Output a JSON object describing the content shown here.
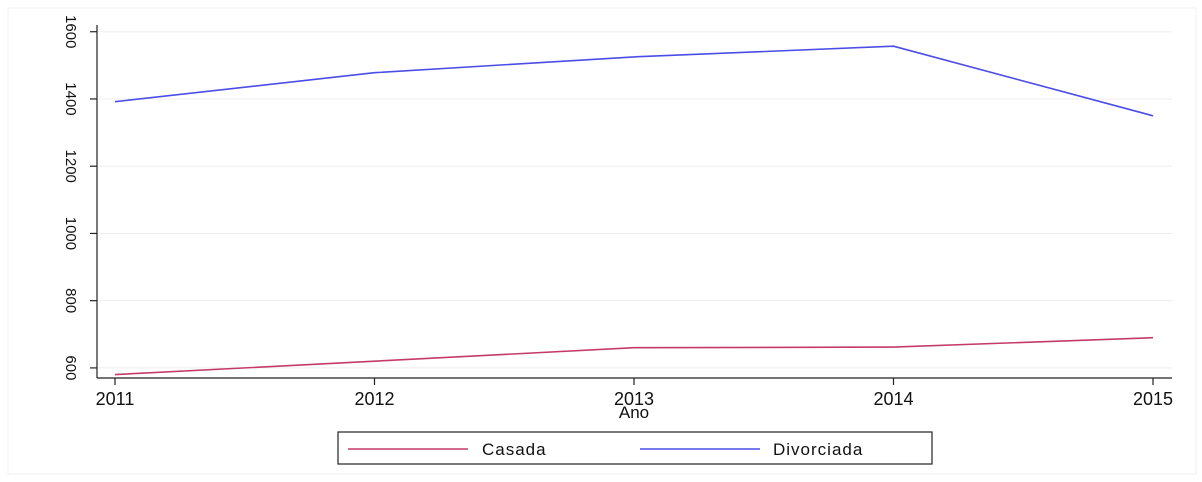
{
  "chart_data": {
    "type": "line",
    "title": "",
    "xlabel": "Ano",
    "ylabel": "",
    "x": [
      2011,
      2012,
      2013,
      2014,
      2015
    ],
    "x_ticks": [
      "2011",
      "2012",
      "2013",
      "2014",
      "2015"
    ],
    "y_ticks": [
      "600",
      "800",
      "1000",
      "1200",
      "1400",
      "1600"
    ],
    "ylim": [
      570,
      1620
    ],
    "grid": true,
    "legend_position": "bottom",
    "series": [
      {
        "name": "Casada",
        "color": "#c43b6b",
        "values": [
          580,
          620,
          660,
          662,
          690
        ]
      },
      {
        "name": "Divorciada",
        "color": "#4b4de6",
        "values": [
          1392,
          1478,
          1525,
          1557,
          1350
        ]
      }
    ]
  }
}
